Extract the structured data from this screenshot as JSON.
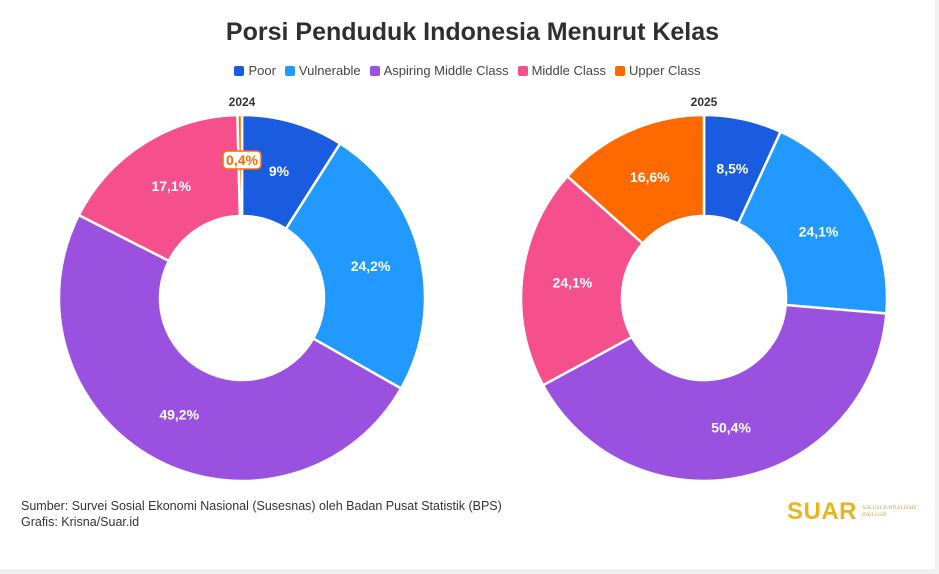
{
  "title": "Porsi Penduduk Indonesia Menurut Kelas",
  "legend": [
    {
      "label": "Poor",
      "color": "#1a5ce0"
    },
    {
      "label": "Vulnerable",
      "color": "#2299ff"
    },
    {
      "label": "Aspiring Middle Class",
      "color": "#9b51e0"
    },
    {
      "label": "Middle Class",
      "color": "#f5508c"
    },
    {
      "label": "Upper Class",
      "color": "#ff6a00"
    }
  ],
  "footer": {
    "source": "Sumber: Survei Sosial Ekonomi Nasional (Susesnas) oleh Badan Pusat Statistik (BPS)",
    "credit": "Grafis: Krisna/Suar.id"
  },
  "brand": {
    "name": "SUAR",
    "tagline": "Solusi Jurnalisme Inklusif"
  },
  "chart_data": [
    {
      "type": "pie",
      "title": "2024",
      "categories": [
        "Poor",
        "Vulnerable",
        "Aspiring Middle Class",
        "Middle Class",
        "Upper Class"
      ],
      "values": [
        9,
        24.2,
        49.2,
        17.1,
        0.4
      ],
      "labels": [
        "9%",
        "24,2%",
        "49,2%",
        "17,1%",
        "0,4%"
      ],
      "colors": [
        "#1a5ce0",
        "#2299ff",
        "#9b51e0",
        "#f5508c",
        "#ff6a00"
      ]
    },
    {
      "type": "pie",
      "title": "2025",
      "categories": [
        "Poor",
        "Vulnerable",
        "Aspiring Middle Class",
        "Middle Class",
        "Upper Class"
      ],
      "values": [
        8.5,
        24.1,
        50.4,
        24.1,
        16.6
      ],
      "labels": [
        "8,5%",
        "24,1%",
        "50,4%",
        "24,1%",
        "16,6%"
      ],
      "colors": [
        "#1a5ce0",
        "#2299ff",
        "#9b51e0",
        "#f5508c",
        "#ff6a00"
      ]
    }
  ]
}
